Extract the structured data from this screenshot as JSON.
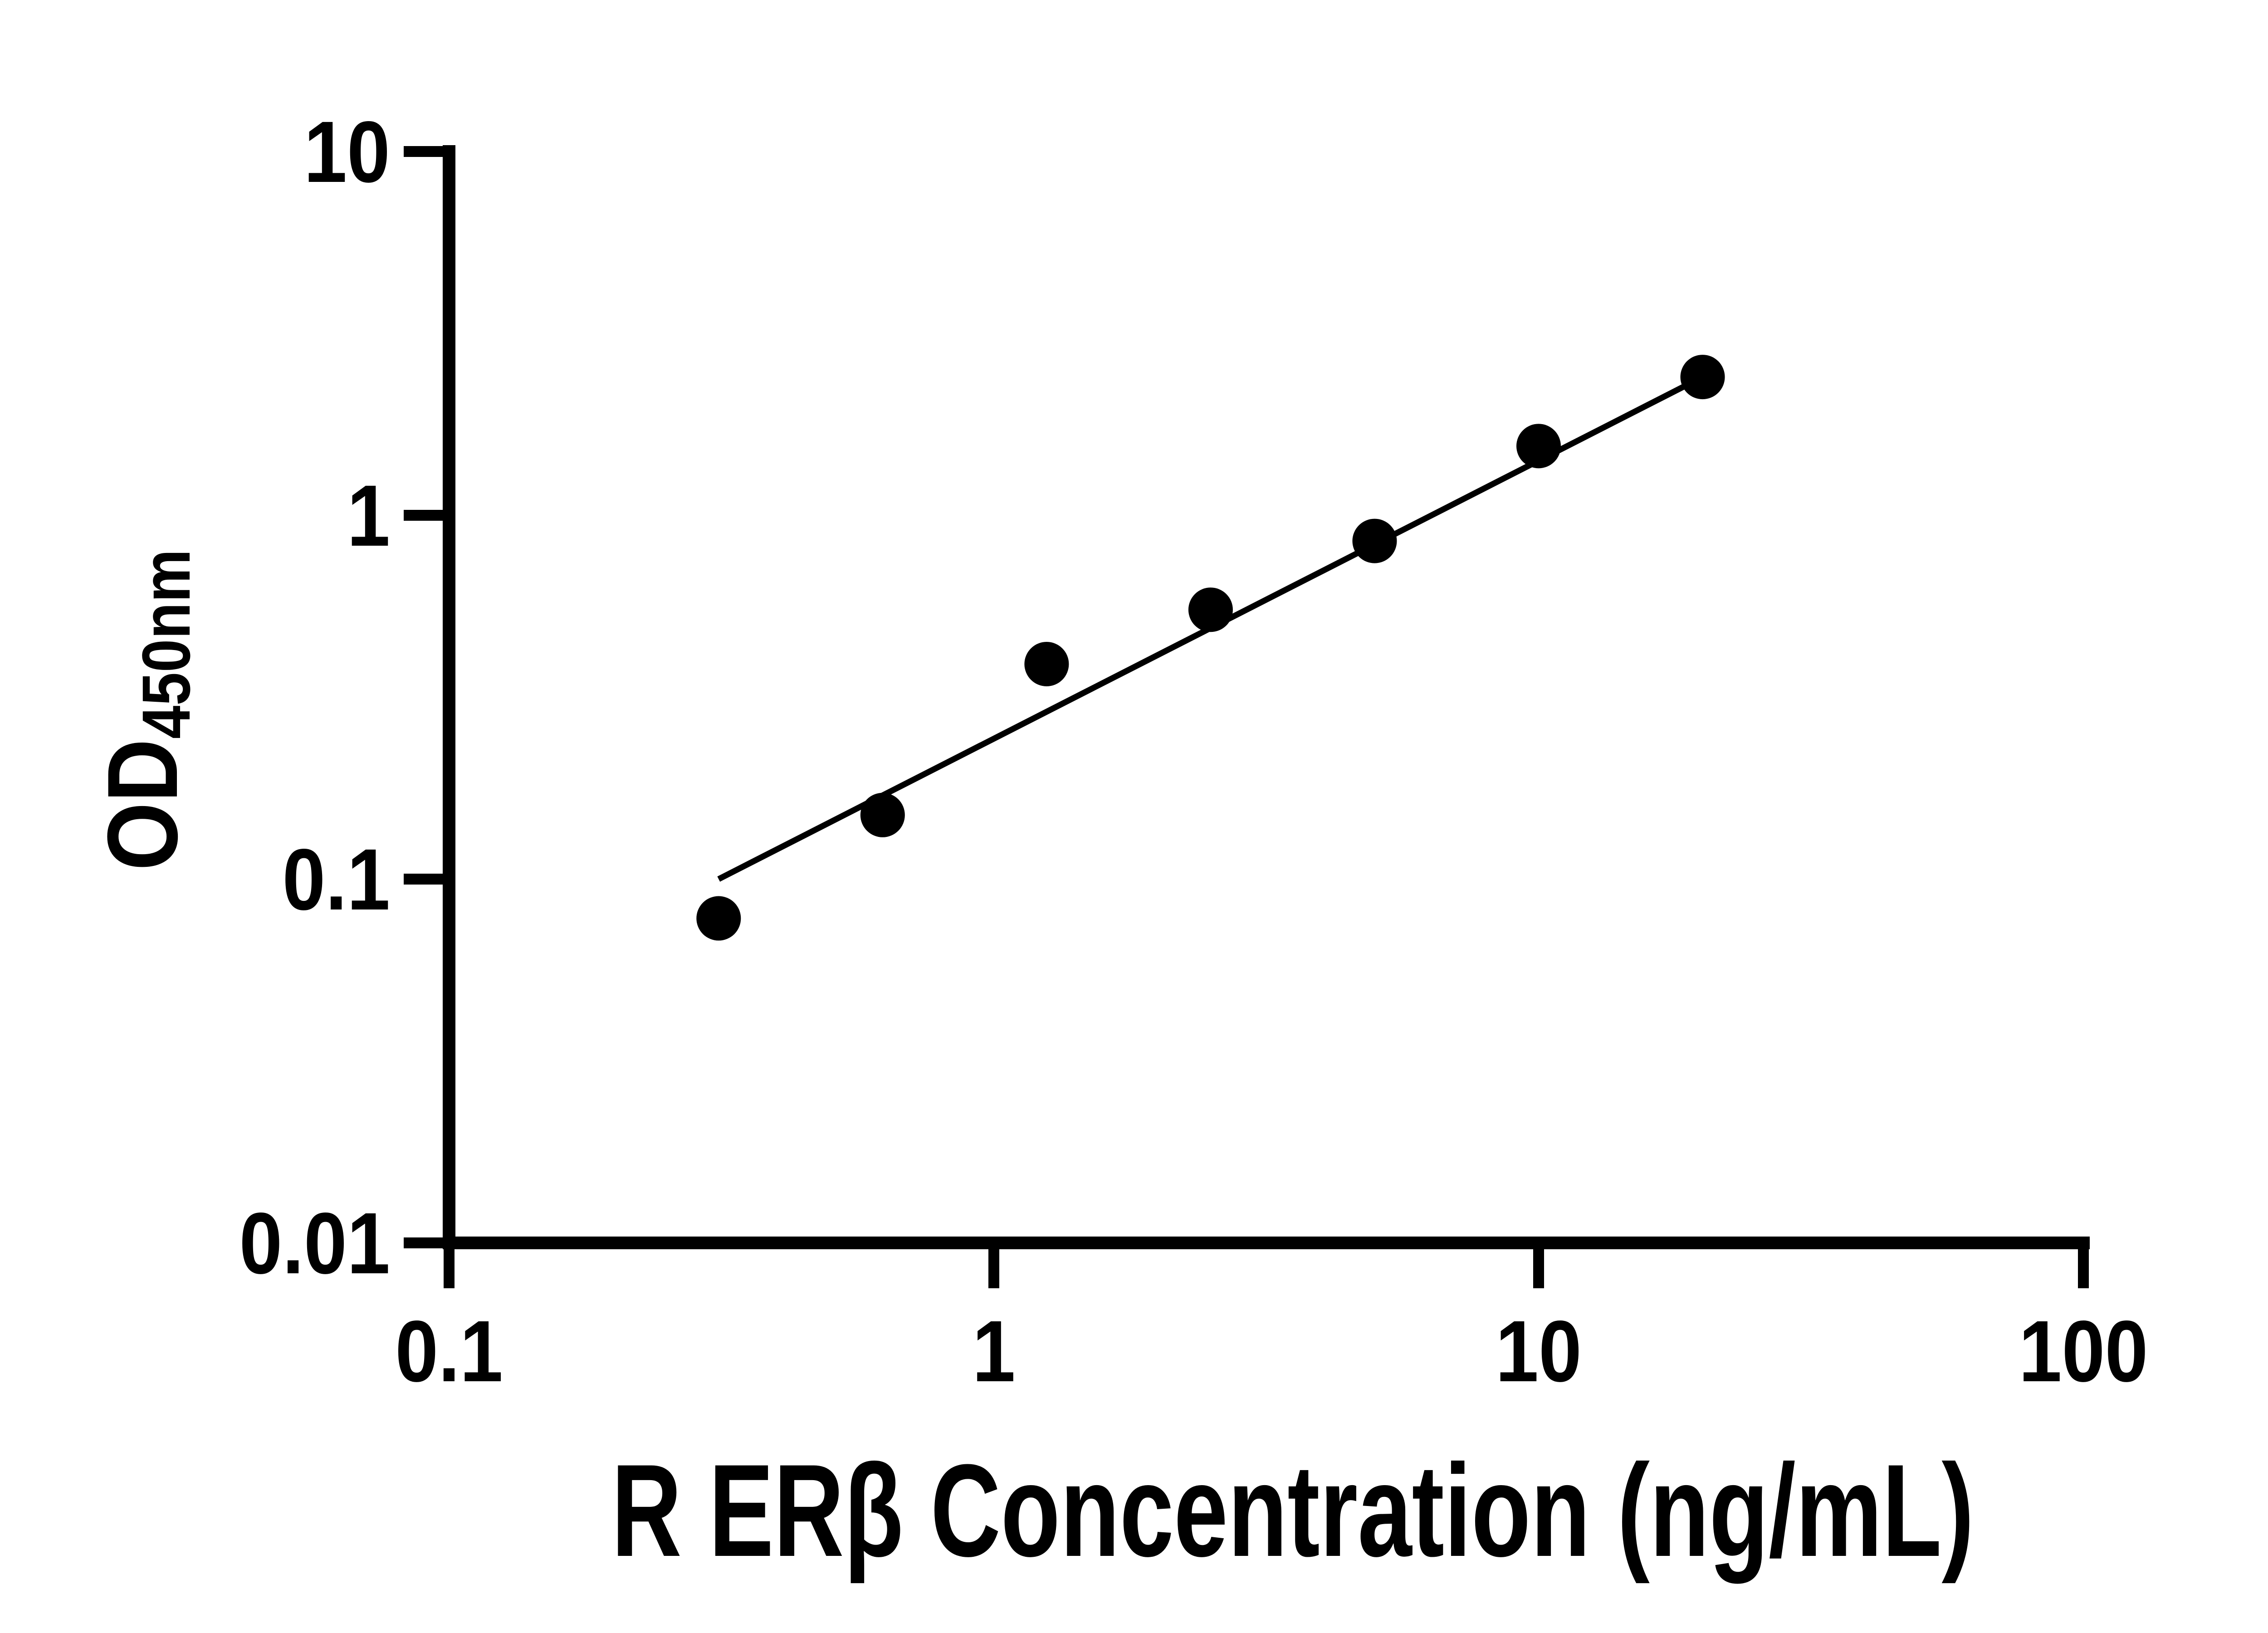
{
  "colors": {
    "ink": "#000000",
    "background": "#ffffff"
  },
  "chart_data": {
    "type": "scatter",
    "title": "",
    "xlabel": "R ERβ Concentration (ng/mL)",
    "ylabel_main": "OD",
    "ylabel_sub": "450nm",
    "x_scale": "log",
    "y_scale": "log",
    "xlim": [
      0.1,
      100
    ],
    "ylim": [
      0.01,
      10
    ],
    "grid": false,
    "legend": false,
    "x_ticks": [
      {
        "value": 0.1,
        "label": "0.1"
      },
      {
        "value": 1,
        "label": "1"
      },
      {
        "value": 10,
        "label": "10"
      },
      {
        "value": 100,
        "label": "100"
      }
    ],
    "y_ticks": [
      {
        "value": 10,
        "label": "10"
      },
      {
        "value": 1,
        "label": "1"
      },
      {
        "value": 0.1,
        "label": "0.1"
      },
      {
        "value": 0.01,
        "label": "0.01"
      }
    ],
    "series": [
      {
        "name": "standard-curve-points",
        "marker": "circle",
        "color": "#000000",
        "points": [
          {
            "x": 0.3125,
            "y": 0.078
          },
          {
            "x": 0.625,
            "y": 0.15
          },
          {
            "x": 1.25,
            "y": 0.39
          },
          {
            "x": 2.5,
            "y": 0.55
          },
          {
            "x": 5,
            "y": 0.85
          },
          {
            "x": 10,
            "y": 1.55
          },
          {
            "x": 20,
            "y": 2.4
          }
        ]
      }
    ],
    "trend_line": {
      "x1": 0.3125,
      "y1": 0.1,
      "x2": 20,
      "y2": 2.4,
      "color": "#000000"
    }
  }
}
